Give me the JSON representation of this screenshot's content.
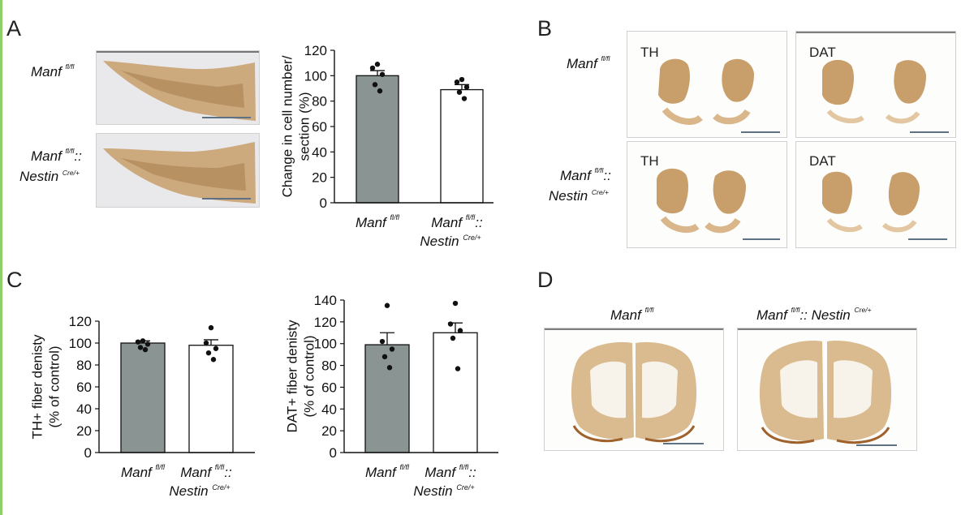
{
  "panels": {
    "A": {
      "letter": "A",
      "row1_genotype": {
        "base": "Manf",
        "sup": "fl/fl"
      },
      "row2_genotype": {
        "base": "Manf",
        "sup": "fl/fl",
        "sep": "::",
        "line2": "Nestin",
        "sup2": "Cre/+"
      }
    },
    "B": {
      "letter": "B",
      "row1_genotype": {
        "base": "Manf",
        "sup": "fl/fl"
      },
      "row2_genotype": {
        "base": "Manf",
        "sup": "fl/fl",
        "sep": "::",
        "line2": "Nestin",
        "sup2": "Cre/+"
      },
      "labels": {
        "th": "TH",
        "dat": "DAT"
      }
    },
    "C": {
      "letter": "C"
    },
    "D": {
      "letter": "D",
      "left_title": {
        "base": "Manf",
        "sup": "fl/fl"
      },
      "right_title": {
        "base": "Manf",
        "sup": "fl/fl",
        "sep": ":: Nestin",
        "sup2": "Cre/+"
      }
    }
  },
  "colors": {
    "control_bar": "#8a9493",
    "knockout_bar": "#ffffff",
    "stain": "#c8a06a",
    "scale_bar": "#5e7185"
  },
  "chart_data": [
    {
      "id": "A-cell-number",
      "type": "bar",
      "categories": [
        {
          "base": "Manf",
          "sup": "fl/fl"
        },
        {
          "base": "Manf",
          "sup": "fl/fl",
          "sep": "::",
          "line2": "Nestin",
          "sup2": "Cre/+"
        }
      ],
      "values": [
        100,
        89
      ],
      "errors": [
        4,
        4
      ],
      "points": [
        [
          109,
          106,
          101,
          93,
          88
        ],
        [
          97,
          95,
          91,
          87,
          82
        ]
      ],
      "ylabel": "Change in cell number/ section (%)",
      "ylim": [
        0,
        120
      ],
      "yticks": [
        0,
        20,
        40,
        60,
        80,
        100,
        120
      ]
    },
    {
      "id": "C-th-fiber",
      "type": "bar",
      "categories": [
        {
          "base": "Manf",
          "sup": "fl/fl"
        },
        {
          "base": "Manf",
          "sup": "fl/fl",
          "sep": "::",
          "line2": "Nestin",
          "sup2": "Cre/+"
        }
      ],
      "values": [
        100,
        98
      ],
      "errors": [
        2,
        5
      ],
      "points": [
        [
          102,
          101,
          99,
          96,
          94
        ],
        [
          114,
          100,
          95,
          91,
          85
        ]
      ],
      "ylabel": "TH+ fiber denisty (% of control)",
      "ylim": [
        0,
        120
      ],
      "yticks": [
        0,
        20,
        40,
        60,
        80,
        100,
        120
      ]
    },
    {
      "id": "C-dat-fiber",
      "type": "bar",
      "categories": [
        {
          "base": "Manf",
          "sup": "fl/fl"
        },
        {
          "base": "Manf",
          "sup": "fl/fl",
          "sep": "::",
          "line2": "Nestin",
          "sup2": "Cre/+"
        }
      ],
      "values": [
        99,
        110
      ],
      "errors": [
        11,
        9
      ],
      "points": [
        [
          135,
          102,
          95,
          88,
          78
        ],
        [
          137,
          118,
          112,
          105,
          77
        ]
      ],
      "ylabel": "DAT+ fiber denisty (% of control)",
      "ylim": [
        0,
        140
      ],
      "yticks": [
        0,
        20,
        40,
        60,
        80,
        100,
        120,
        140
      ]
    }
  ]
}
